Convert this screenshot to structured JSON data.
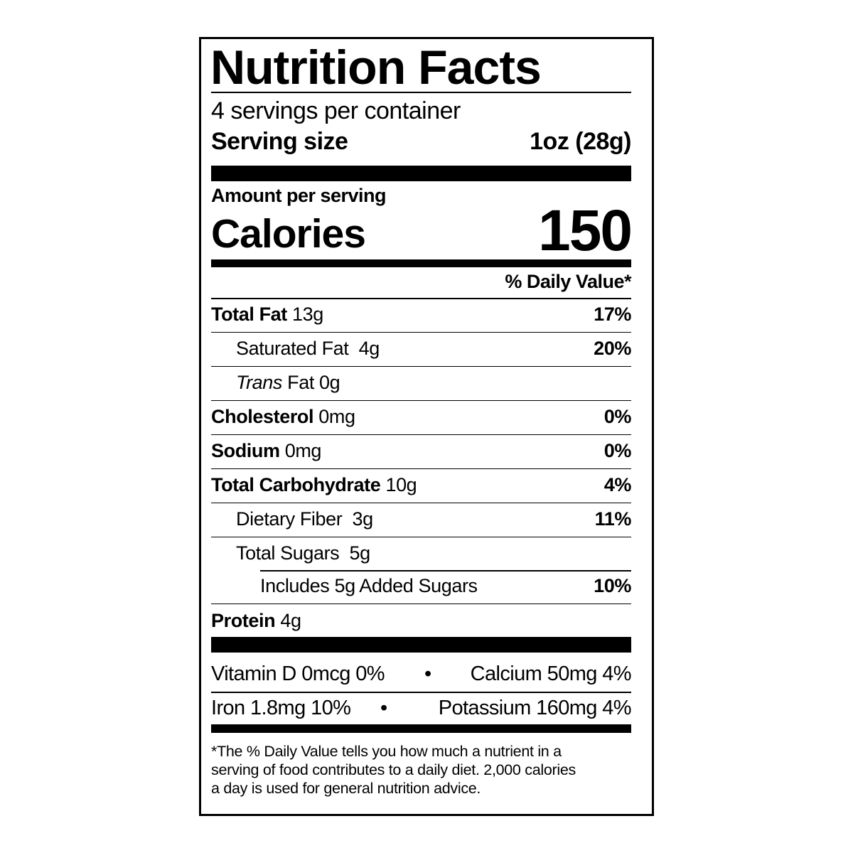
{
  "title": "Nutrition Facts",
  "servings_per_container": "4 servings per container",
  "serving_size": {
    "label": "Serving size",
    "value": "1oz (28g)"
  },
  "amount_per_serving": "Amount per serving",
  "calories": {
    "label": "Calories",
    "value": "150"
  },
  "daily_value_header": "% Daily Value*",
  "nutrients": [
    {
      "name": "Total Fat",
      "amount": "13g",
      "dv": "17%"
    },
    {
      "name": "Saturated Fat",
      "amount": "4g",
      "dv": "20%"
    },
    {
      "name_italic": "Trans",
      "name": "Fat",
      "amount": "0g",
      "dv": ""
    },
    {
      "name": "Cholesterol",
      "amount": "0mg",
      "dv": "0%"
    },
    {
      "name": "Sodium",
      "amount": "0mg",
      "dv": "0%"
    },
    {
      "name": "Total Carbohydrate",
      "amount": "10g",
      "dv": "4%"
    },
    {
      "name": "Dietary Fiber",
      "amount": "3g",
      "dv": "11%"
    },
    {
      "name": "Total Sugars",
      "amount": "5g",
      "dv": ""
    },
    {
      "name": "Includes 5g Added Sugars",
      "amount": "",
      "dv": "10%"
    },
    {
      "name": "Protein",
      "amount": "4g",
      "dv": ""
    }
  ],
  "micronutrients": [
    {
      "left": "Vitamin D 0mcg 0%",
      "sep": "•",
      "right": "Calcium 50mg 4%"
    },
    {
      "left": "Iron 1.8mg 10%",
      "sep": "•",
      "right": "Potassium 160mg 4%"
    }
  ],
  "footnote": [
    "*The % Daily Value tells you how much a nutrient in a",
    "serving of food contributes to a daily diet. 2,000 calories",
    "a day is used for general nutrition advice."
  ]
}
